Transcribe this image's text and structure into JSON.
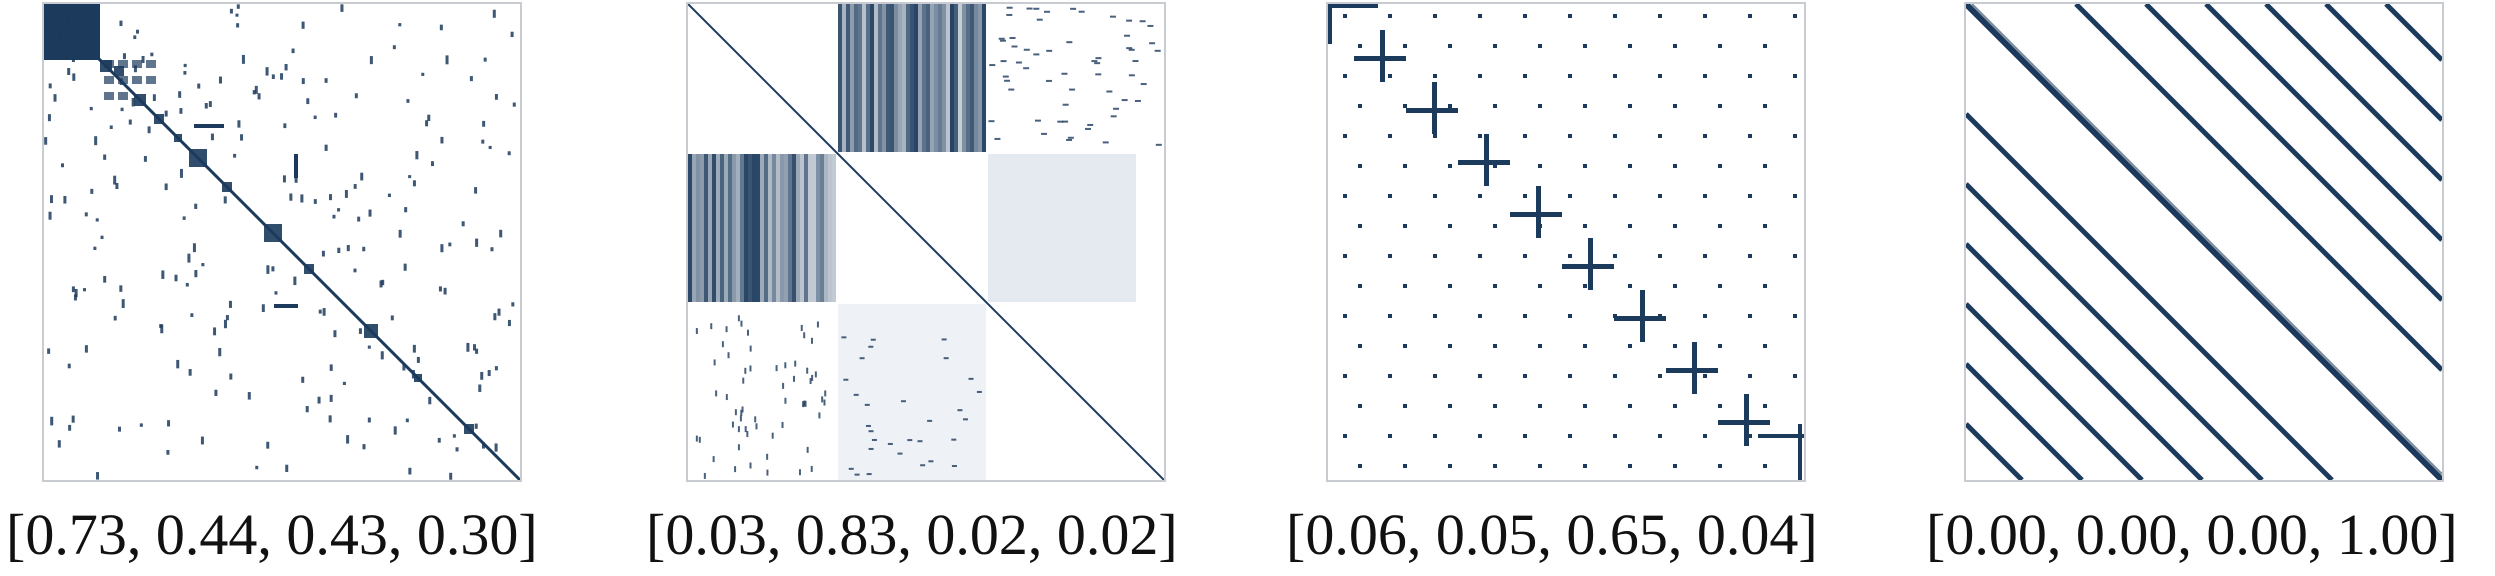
{
  "panels": [
    {
      "id": "p1",
      "caption": "[0.73, 0.44, 0.43, 0.30]",
      "pattern": "block-diagonal-sparse"
    },
    {
      "id": "p2",
      "caption": "[0.03, 0.83, 0.02, 0.02]",
      "pattern": "off-diagonal-blocks"
    },
    {
      "id": "p3",
      "caption": "[0.06, 0.05, 0.65, 0.04]",
      "pattern": "cross-diagonal-grid"
    },
    {
      "id": "p4",
      "caption": "[0.00, 0.00, 0.00, 1.00]",
      "pattern": "banded-diagonals"
    }
  ],
  "colors": {
    "ink": "#1b3a5c",
    "frame": "#c8ccd0",
    "light": "#a9b8c9"
  }
}
